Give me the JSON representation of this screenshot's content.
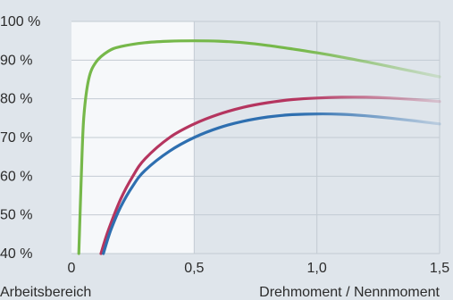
{
  "chart_data": {
    "type": "line",
    "x_ticks": [
      "0",
      "0,5",
      "1,0",
      "1,5"
    ],
    "x_tick_values": [
      0,
      0.5,
      1.0,
      1.5
    ],
    "y_ticks": [
      "40 %",
      "50 %",
      "60 %",
      "70 %",
      "80 %",
      "90 %",
      "100 %"
    ],
    "y_tick_values": [
      40,
      50,
      60,
      70,
      80,
      90,
      100
    ],
    "xlim": [
      0,
      1.5
    ],
    "ylim": [
      40,
      100
    ],
    "xlabel": "Drehmoment / Nennmoment",
    "region_label": "Arbeitsbereich",
    "working_range": [
      0,
      0.5
    ],
    "grid": true,
    "series": [
      {
        "color": "#76b84a",
        "x": [
          0.03,
          0.04,
          0.05,
          0.07,
          0.1,
          0.15,
          0.2,
          0.3,
          0.4,
          0.5,
          0.6,
          0.7,
          0.8,
          0.9,
          1.0,
          1.1,
          1.2,
          1.3,
          1.4,
          1.5
        ],
        "y": [
          40,
          60,
          75,
          85,
          89.5,
          92.3,
          93.5,
          94.5,
          94.9,
          95.0,
          94.9,
          94.5,
          93.8,
          92.9,
          91.9,
          90.8,
          89.6,
          88.3,
          87.0,
          85.7
        ]
      },
      {
        "color": "#b5355f",
        "x": [
          0.12,
          0.15,
          0.2,
          0.25,
          0.3,
          0.4,
          0.5,
          0.6,
          0.7,
          0.8,
          0.9,
          1.0,
          1.1,
          1.2,
          1.3,
          1.4,
          1.5
        ],
        "y": [
          40,
          46,
          54,
          60,
          64.5,
          70,
          73.5,
          76,
          77.8,
          79,
          79.8,
          80.2,
          80.4,
          80.4,
          80.2,
          79.8,
          79.3
        ]
      },
      {
        "color": "#2e6fb0",
        "x": [
          0.13,
          0.16,
          0.2,
          0.25,
          0.3,
          0.4,
          0.5,
          0.6,
          0.7,
          0.8,
          0.9,
          1.0,
          1.1,
          1.2,
          1.3,
          1.4,
          1.5
        ],
        "y": [
          40,
          46,
          52,
          57.5,
          61.5,
          66.5,
          70,
          72.5,
          74.2,
          75.3,
          75.9,
          76.1,
          76.0,
          75.6,
          75.0,
          74.3,
          73.5
        ]
      }
    ]
  }
}
